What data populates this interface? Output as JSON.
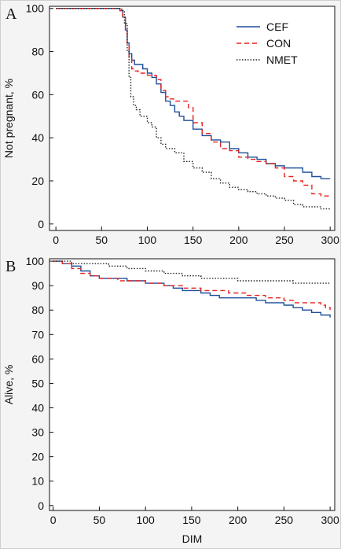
{
  "chart_data": [
    {
      "type": "line",
      "panel_label": "A",
      "xlabel": "",
      "ylabel": "Not pregnant, %",
      "xlim": [
        -7,
        305
      ],
      "ylim": [
        -3,
        101
      ],
      "xticks": [
        0,
        50,
        100,
        150,
        200,
        250,
        300
      ],
      "yticks": [
        0,
        20,
        40,
        60,
        80,
        100
      ],
      "step": true,
      "legend": {
        "placement": "top-right"
      },
      "series": [
        {
          "name": "CEF",
          "color": "#1f4e9b",
          "dash": "solid",
          "x": [
            0,
            60,
            70,
            73,
            76,
            78,
            80,
            83,
            86,
            90,
            95,
            100,
            105,
            110,
            115,
            120,
            125,
            130,
            135,
            140,
            150,
            160,
            170,
            180,
            190,
            200,
            210,
            220,
            230,
            240,
            250,
            260,
            270,
            280,
            290,
            300
          ],
          "y": [
            100,
            100,
            99,
            96,
            90,
            84,
            79,
            76,
            74,
            74,
            72,
            70,
            68,
            65,
            61,
            57,
            55,
            52,
            50,
            48,
            44,
            41,
            39,
            38,
            35,
            33,
            31,
            30,
            28,
            27,
            26,
            26,
            24,
            22,
            21,
            21
          ]
        },
        {
          "name": "CON",
          "color": "#e8231f",
          "dash": "6,4",
          "x": [
            0,
            60,
            70,
            73,
            76,
            78,
            80,
            83,
            86,
            90,
            100,
            110,
            115,
            120,
            125,
            130,
            140,
            145,
            150,
            160,
            170,
            180,
            190,
            200,
            210,
            220,
            230,
            240,
            250,
            260,
            270,
            280,
            290,
            300
          ],
          "y": [
            100,
            100,
            99,
            96,
            90,
            83,
            77,
            72,
            71,
            70,
            69,
            67,
            62,
            59,
            58,
            57,
            57,
            54,
            47,
            42,
            38,
            35,
            34,
            31,
            30,
            29,
            28,
            26,
            22,
            20,
            18,
            14,
            13,
            13
          ]
        },
        {
          "name": "NMET",
          "color": "#222222",
          "dash": "1.5,2",
          "x": [
            0,
            60,
            72,
            75,
            78,
            80,
            82,
            85,
            88,
            92,
            100,
            105,
            110,
            115,
            120,
            130,
            140,
            150,
            160,
            170,
            180,
            190,
            200,
            210,
            220,
            230,
            240,
            250,
            260,
            270,
            280,
            290,
            300
          ],
          "y": [
            100,
            100,
            99,
            93,
            80,
            68,
            59,
            55,
            53,
            50,
            47,
            45,
            40,
            37,
            35,
            33,
            29,
            26,
            24,
            21,
            19,
            17,
            16,
            15,
            14,
            13,
            12,
            11,
            9,
            8,
            8,
            7,
            7
          ]
        }
      ]
    },
    {
      "type": "line",
      "panel_label": "B",
      "xlabel": "DIM",
      "ylabel": "Alive, %",
      "xlim": [
        -4,
        305
      ],
      "ylim": [
        -2,
        101
      ],
      "xticks": [
        0,
        50,
        100,
        150,
        200,
        250,
        300
      ],
      "yticks": [
        0,
        10,
        20,
        30,
        40,
        50,
        60,
        70,
        80,
        90,
        100
      ],
      "step": true,
      "series": [
        {
          "name": "CEF",
          "color": "#1f4e9b",
          "dash": "solid",
          "x": [
            0,
            5,
            10,
            20,
            30,
            40,
            50,
            60,
            70,
            80,
            90,
            100,
            110,
            120,
            130,
            140,
            150,
            160,
            170,
            180,
            190,
            200,
            210,
            220,
            230,
            240,
            250,
            260,
            270,
            280,
            290,
            295,
            300
          ],
          "y": [
            100,
            100,
            99,
            98,
            96,
            94,
            93,
            93,
            93,
            92,
            92,
            91,
            91,
            90,
            89,
            88,
            88,
            87,
            86,
            85,
            85,
            85,
            85,
            84,
            83,
            83,
            82,
            81,
            80,
            79,
            78,
            78,
            77
          ]
        },
        {
          "name": "CON",
          "color": "#e8231f",
          "dash": "6,4",
          "x": [
            0,
            5,
            10,
            20,
            30,
            40,
            50,
            60,
            70,
            80,
            90,
            100,
            110,
            120,
            130,
            140,
            150,
            160,
            170,
            180,
            190,
            200,
            210,
            220,
            230,
            240,
            250,
            260,
            270,
            280,
            290,
            295,
            300
          ],
          "y": [
            100,
            100,
            99,
            97,
            95,
            94,
            93,
            93,
            92,
            92,
            92,
            91,
            91,
            90,
            90,
            89,
            89,
            88,
            88,
            88,
            87,
            87,
            86,
            86,
            85,
            85,
            84,
            83,
            83,
            83,
            82,
            81,
            80
          ]
        },
        {
          "name": "NMET",
          "color": "#222222",
          "dash": "1.5,2",
          "x": [
            0,
            20,
            40,
            60,
            80,
            100,
            120,
            140,
            160,
            180,
            200,
            220,
            240,
            260,
            280,
            300
          ],
          "y": [
            100,
            99,
            99,
            98,
            97,
            96,
            95,
            94,
            93,
            93,
            92,
            92,
            92,
            91,
            91,
            91
          ]
        }
      ]
    }
  ]
}
